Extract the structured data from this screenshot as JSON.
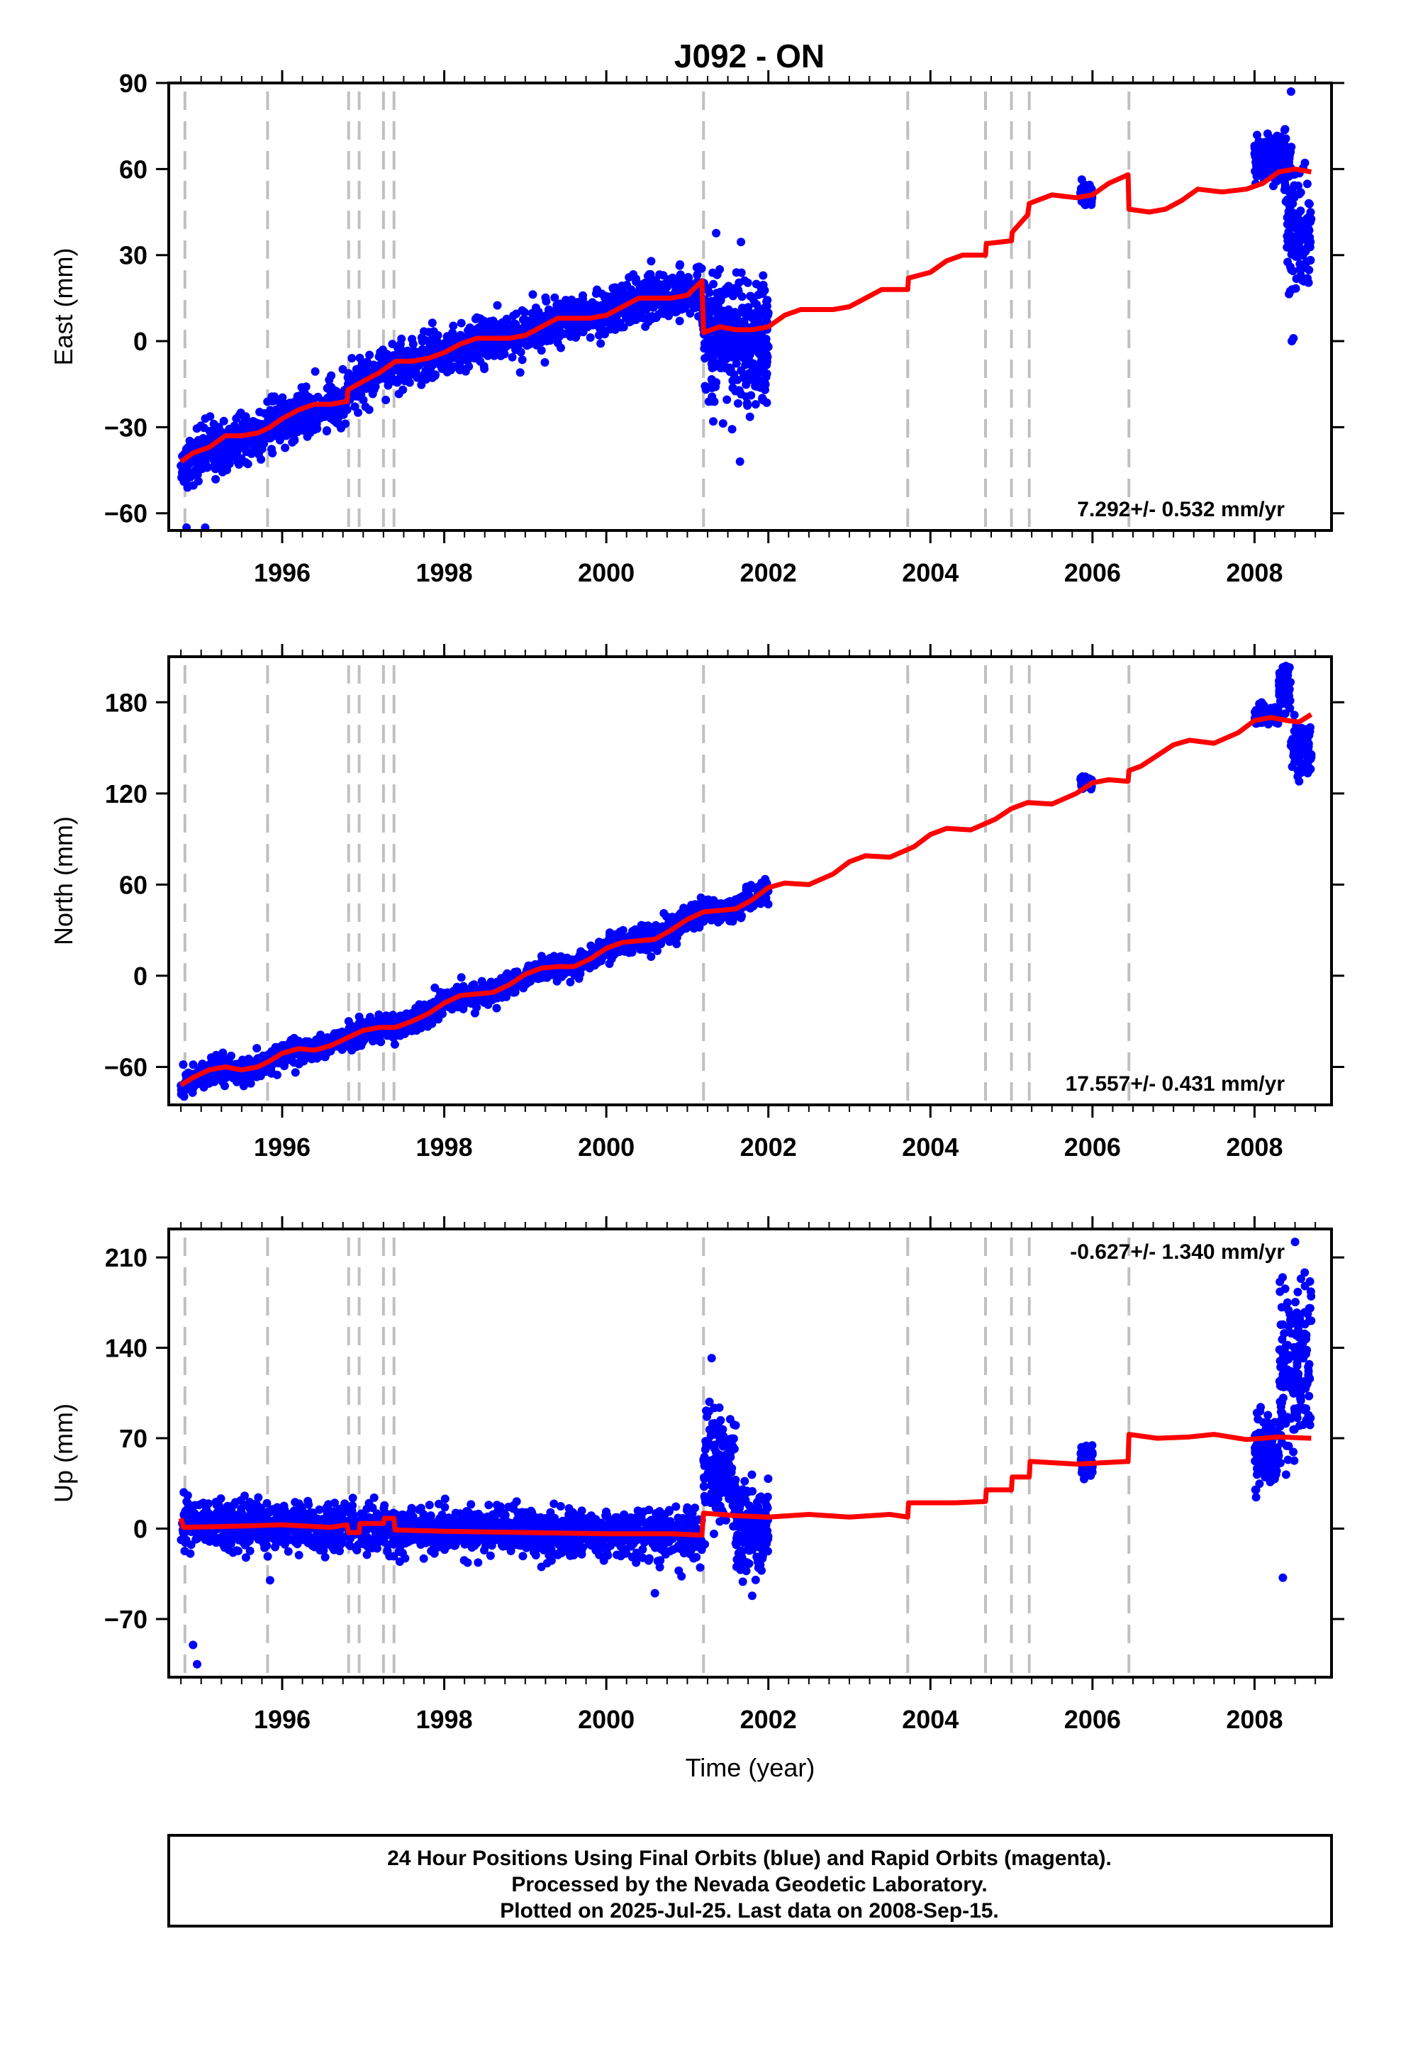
{
  "page": {
    "title": "J092 - ON",
    "caption_lines": [
      "24 Hour Positions Using Final Orbits (blue) and Rapid Orbits (magenta).",
      "Processed by the Nevada Geodetic Laboratory.",
      "Plotted on 2025-Jul-25. Last data on 2008-Sep-15."
    ]
  },
  "colors": {
    "data_points": "#0000ff",
    "model_line": "#ff0000",
    "event_lines": "#c0c0c0",
    "frame": "#000000"
  },
  "chart_data": [
    {
      "type": "scatter",
      "name": "east",
      "ylabel": "East (mm)",
      "xlabel": "",
      "rate_text": "7.292+/- 0.532 mm/yr",
      "rate_position": "bottom-right",
      "xlim": [
        1994.6,
        2008.95
      ],
      "ylim": [
        -66,
        90
      ],
      "xticks": [
        1996,
        1998,
        2000,
        2002,
        2004,
        2006,
        2008
      ],
      "xtick_labels": [
        "1996",
        "1998",
        "2000",
        "2002",
        "2004",
        "2006",
        "2008"
      ],
      "yticks": [
        -60,
        -30,
        0,
        30,
        60,
        90
      ],
      "ytick_labels": [
        "−60",
        "−30",
        "0",
        "30",
        "60",
        "90"
      ],
      "event_lines_x": [
        1994.8,
        1995.82,
        1996.82,
        1996.95,
        1997.25,
        1997.38,
        2001.2,
        2003.72,
        2004.68,
        2005.0,
        2005.22,
        2006.45
      ],
      "model_line": [
        [
          1994.75,
          -42
        ],
        [
          1994.9,
          -39
        ],
        [
          1995.1,
          -37
        ],
        [
          1995.3,
          -33
        ],
        [
          1995.5,
          -33
        ],
        [
          1995.7,
          -32
        ],
        [
          1995.85,
          -30
        ],
        [
          1996.0,
          -27
        ],
        [
          1996.2,
          -24
        ],
        [
          1996.4,
          -22
        ],
        [
          1996.6,
          -22
        ],
        [
          1996.8,
          -21
        ],
        [
          1996.81,
          -17
        ],
        [
          1997.0,
          -14
        ],
        [
          1997.2,
          -11
        ],
        [
          1997.4,
          -7
        ],
        [
          1997.6,
          -7
        ],
        [
          1997.8,
          -6
        ],
        [
          1998.0,
          -4
        ],
        [
          1998.2,
          -1
        ],
        [
          1998.4,
          1
        ],
        [
          1998.6,
          1
        ],
        [
          1998.8,
          1
        ],
        [
          1999.0,
          2
        ],
        [
          1999.2,
          5
        ],
        [
          1999.4,
          8
        ],
        [
          1999.6,
          8
        ],
        [
          1999.8,
          8
        ],
        [
          2000.0,
          9
        ],
        [
          2000.2,
          12
        ],
        [
          2000.4,
          15
        ],
        [
          2000.6,
          15
        ],
        [
          2000.8,
          15
        ],
        [
          2001.0,
          16
        ],
        [
          2001.18,
          21
        ],
        [
          2001.2,
          3
        ],
        [
          2001.4,
          5
        ],
        [
          2001.6,
          4
        ],
        [
          2001.8,
          4
        ],
        [
          2002.0,
          5
        ],
        [
          2002.2,
          9
        ],
        [
          2002.4,
          11
        ],
        [
          2002.6,
          11
        ],
        [
          2002.8,
          11
        ],
        [
          2003.0,
          12
        ],
        [
          2003.2,
          15
        ],
        [
          2003.4,
          18
        ],
        [
          2003.72,
          18
        ],
        [
          2003.73,
          22
        ],
        [
          2004.0,
          24
        ],
        [
          2004.2,
          28
        ],
        [
          2004.4,
          30
        ],
        [
          2004.68,
          30
        ],
        [
          2004.69,
          34
        ],
        [
          2005.0,
          35
        ],
        [
          2005.01,
          38
        ],
        [
          2005.2,
          44
        ],
        [
          2005.22,
          48
        ],
        [
          2005.5,
          51
        ],
        [
          2005.8,
          50
        ],
        [
          2006.0,
          51
        ],
        [
          2006.2,
          55
        ],
        [
          2006.44,
          58
        ],
        [
          2006.45,
          46
        ],
        [
          2006.7,
          45
        ],
        [
          2006.9,
          46
        ],
        [
          2007.1,
          49
        ],
        [
          2007.3,
          53
        ],
        [
          2007.6,
          52
        ],
        [
          2007.9,
          53
        ],
        [
          2008.1,
          55
        ],
        [
          2008.3,
          59
        ],
        [
          2008.5,
          60
        ],
        [
          2008.7,
          59
        ]
      ],
      "point_trend": [
        [
          1994.75,
          -44
        ],
        [
          1995.0,
          -40
        ],
        [
          1995.5,
          -34
        ],
        [
          1996.0,
          -28
        ],
        [
          1996.5,
          -23
        ],
        [
          1996.8,
          -21
        ],
        [
          1996.81,
          -16
        ],
        [
          1997.5,
          -8
        ],
        [
          1998.0,
          -4
        ],
        [
          1998.5,
          0
        ],
        [
          1999.0,
          3
        ],
        [
          1999.5,
          8
        ],
        [
          2000.0,
          10
        ],
        [
          2000.5,
          15
        ],
        [
          2001.18,
          17
        ],
        [
          2001.2,
          5
        ],
        [
          2001.6,
          2
        ],
        [
          2002.0,
          0
        ]
      ],
      "point_spread": 4,
      "point_clusters": [
        {
          "x": [
            2001.2,
            2002.0
          ],
          "y_center": 0,
          "spread": 12
        },
        {
          "x": [
            2005.85,
            2006.0
          ],
          "y_center": 51,
          "spread": 1.5
        },
        {
          "x": [
            2008.0,
            2008.35
          ],
          "y_center": 64,
          "spread": 4
        },
        {
          "x": [
            2008.35,
            2008.45
          ],
          "y_center": 62,
          "spread": 6
        },
        {
          "x": [
            2008.4,
            2008.7
          ],
          "y_center": 40,
          "spread": 10
        }
      ],
      "outliers": [
        [
          1994.82,
          -65
        ],
        [
          1995.05,
          -65
        ],
        [
          1995.55,
          -32
        ],
        [
          2001.65,
          -42
        ],
        [
          2001.4,
          25
        ],
        [
          2008.45,
          87
        ],
        [
          2008.48,
          1
        ],
        [
          2008.46,
          0
        ]
      ]
    },
    {
      "type": "scatter",
      "name": "north",
      "ylabel": "North (mm)",
      "xlabel": "",
      "rate_text": "17.557+/- 0.431 mm/yr",
      "rate_position": "bottom-right",
      "xlim": [
        1994.6,
        2008.95
      ],
      "ylim": [
        -85,
        210
      ],
      "xticks": [
        1996,
        1998,
        2000,
        2002,
        2004,
        2006,
        2008
      ],
      "xtick_labels": [
        "1996",
        "1998",
        "2000",
        "2002",
        "2004",
        "2006",
        "2008"
      ],
      "yticks": [
        -60,
        0,
        60,
        120,
        180
      ],
      "ytick_labels": [
        "−60",
        "0",
        "60",
        "120",
        "180"
      ],
      "event_lines_x": [
        1994.8,
        1995.82,
        1996.82,
        1996.95,
        1997.25,
        1997.38,
        2001.2,
        2003.72,
        2004.68,
        2005.0,
        2005.22,
        2006.45
      ],
      "model_line": [
        [
          1994.75,
          -72
        ],
        [
          1994.9,
          -67
        ],
        [
          1995.1,
          -62
        ],
        [
          1995.3,
          -60
        ],
        [
          1995.5,
          -62
        ],
        [
          1995.7,
          -60
        ],
        [
          1995.85,
          -56
        ],
        [
          1996.0,
          -51
        ],
        [
          1996.2,
          -48
        ],
        [
          1996.4,
          -49
        ],
        [
          1996.6,
          -46
        ],
        [
          1996.8,
          -41
        ],
        [
          1997.0,
          -36
        ],
        [
          1997.2,
          -34
        ],
        [
          1997.4,
          -34
        ],
        [
          1997.6,
          -30
        ],
        [
          1997.8,
          -25
        ],
        [
          1998.0,
          -18
        ],
        [
          1998.2,
          -13
        ],
        [
          1998.4,
          -12
        ],
        [
          1998.6,
          -11
        ],
        [
          1998.8,
          -6
        ],
        [
          1999.0,
          1
        ],
        [
          1999.2,
          5
        ],
        [
          1999.4,
          6
        ],
        [
          1999.6,
          6
        ],
        [
          1999.8,
          11
        ],
        [
          2000.0,
          18
        ],
        [
          2000.2,
          22
        ],
        [
          2000.4,
          23
        ],
        [
          2000.6,
          24
        ],
        [
          2000.8,
          30
        ],
        [
          2001.0,
          37
        ],
        [
          2001.2,
          42
        ],
        [
          2001.4,
          43
        ],
        [
          2001.6,
          44
        ],
        [
          2001.8,
          50
        ],
        [
          2002.0,
          58
        ],
        [
          2002.2,
          61
        ],
        [
          2002.5,
          60
        ],
        [
          2002.8,
          67
        ],
        [
          2003.0,
          75
        ],
        [
          2003.2,
          79
        ],
        [
          2003.5,
          78
        ],
        [
          2003.8,
          85
        ],
        [
          2004.0,
          93
        ],
        [
          2004.2,
          97
        ],
        [
          2004.5,
          96
        ],
        [
          2004.8,
          103
        ],
        [
          2005.0,
          110
        ],
        [
          2005.2,
          114
        ],
        [
          2005.5,
          113
        ],
        [
          2005.8,
          120
        ],
        [
          2006.0,
          127
        ],
        [
          2006.2,
          129
        ],
        [
          2006.44,
          128
        ],
        [
          2006.45,
          135
        ],
        [
          2006.6,
          138
        ],
        [
          2006.8,
          145
        ],
        [
          2007.0,
          152
        ],
        [
          2007.2,
          155
        ],
        [
          2007.5,
          153
        ],
        [
          2007.8,
          160
        ],
        [
          2008.0,
          168
        ],
        [
          2008.2,
          170
        ],
        [
          2008.4,
          168
        ],
        [
          2008.55,
          167
        ],
        [
          2008.7,
          172
        ]
      ],
      "point_trend": [
        [
          1994.75,
          -74
        ],
        [
          1994.9,
          -69
        ],
        [
          1995.1,
          -63
        ],
        [
          1995.3,
          -61
        ],
        [
          1995.5,
          -63
        ],
        [
          1995.7,
          -61
        ],
        [
          1995.85,
          -56
        ],
        [
          1996.0,
          -51
        ],
        [
          1996.2,
          -48
        ],
        [
          1996.4,
          -49
        ],
        [
          1996.6,
          -46
        ],
        [
          1996.8,
          -41
        ],
        [
          1997.0,
          -36
        ],
        [
          1997.2,
          -34
        ],
        [
          1997.4,
          -34
        ],
        [
          1997.6,
          -30
        ],
        [
          1997.8,
          -25
        ],
        [
          1998.0,
          -18
        ],
        [
          1998.2,
          -13
        ],
        [
          1998.4,
          -12
        ],
        [
          1998.6,
          -11
        ],
        [
          1998.8,
          -6
        ],
        [
          1999.0,
          1
        ],
        [
          1999.2,
          5
        ],
        [
          1999.4,
          6
        ],
        [
          1999.6,
          6
        ],
        [
          1999.8,
          11
        ],
        [
          2000.0,
          18
        ],
        [
          2000.2,
          22
        ],
        [
          2000.4,
          23
        ],
        [
          2000.6,
          24
        ],
        [
          2000.8,
          30
        ],
        [
          2001.0,
          37
        ],
        [
          2001.2,
          42
        ],
        [
          2001.4,
          43
        ],
        [
          2001.6,
          44
        ],
        [
          2001.8,
          50
        ],
        [
          2002.0,
          58
        ]
      ],
      "point_spread": 4,
      "point_clusters": [
        {
          "x": [
            2005.85,
            2006.0
          ],
          "y_center": 128,
          "spread": 2
        },
        {
          "x": [
            2008.0,
            2008.3
          ],
          "y_center": 172,
          "spread": 3
        },
        {
          "x": [
            2008.3,
            2008.45
          ],
          "y_center": 190,
          "spread": 7
        },
        {
          "x": [
            2008.45,
            2008.7
          ],
          "y_center": 150,
          "spread": 8
        }
      ],
      "outliers": [
        [
          2008.35,
          203
        ],
        [
          2008.55,
          128
        ]
      ]
    },
    {
      "type": "scatter",
      "name": "up",
      "ylabel": "Up (mm)",
      "xlabel": "Time (year)",
      "rate_text": "-0.627+/- 1.340 mm/yr",
      "rate_position": "top-right",
      "xlim": [
        1994.6,
        2008.95
      ],
      "ylim": [
        -115,
        232
      ],
      "xticks": [
        1996,
        1998,
        2000,
        2002,
        2004,
        2006,
        2008
      ],
      "xtick_labels": [
        "1996",
        "1998",
        "2000",
        "2002",
        "2004",
        "2006",
        "2008"
      ],
      "yticks": [
        -70,
        0,
        70,
        140,
        210
      ],
      "ytick_labels": [
        "−70",
        "0",
        "70",
        "140",
        "210"
      ],
      "event_lines_x": [
        1994.8,
        1995.82,
        1996.82,
        1996.95,
        1997.25,
        1997.38,
        2001.2,
        2003.72,
        2004.68,
        2005.0,
        2005.22,
        2006.45
      ],
      "model_line": [
        [
          1994.75,
          8
        ],
        [
          1994.78,
          1
        ],
        [
          1995.5,
          2
        ],
        [
          1996.0,
          3
        ],
        [
          1996.6,
          1
        ],
        [
          1996.8,
          3
        ],
        [
          1996.82,
          -3
        ],
        [
          1996.95,
          -3
        ],
        [
          1996.96,
          4
        ],
        [
          1997.25,
          4
        ],
        [
          1997.26,
          8
        ],
        [
          1997.38,
          8
        ],
        [
          1997.39,
          -1
        ],
        [
          1998.0,
          -2
        ],
        [
          1999.0,
          -3
        ],
        [
          2000.0,
          -4
        ],
        [
          2000.8,
          -4
        ],
        [
          2001.18,
          -5
        ],
        [
          2001.2,
          12
        ],
        [
          2001.6,
          10
        ],
        [
          2002.0,
          9
        ],
        [
          2002.5,
          11
        ],
        [
          2003.0,
          9
        ],
        [
          2003.5,
          11
        ],
        [
          2003.72,
          9
        ],
        [
          2003.73,
          20
        ],
        [
          2004.3,
          20
        ],
        [
          2004.68,
          21
        ],
        [
          2004.69,
          30
        ],
        [
          2005.0,
          30
        ],
        [
          2005.01,
          40
        ],
        [
          2005.22,
          40
        ],
        [
          2005.23,
          52
        ],
        [
          2005.8,
          50
        ],
        [
          2006.44,
          52
        ],
        [
          2006.45,
          73
        ],
        [
          2006.8,
          70
        ],
        [
          2007.2,
          71
        ],
        [
          2007.5,
          73
        ],
        [
          2007.9,
          69
        ],
        [
          2008.3,
          71
        ],
        [
          2008.7,
          70
        ]
      ],
      "point_trend": [
        [
          1994.75,
          3
        ],
        [
          1996.0,
          2
        ],
        [
          1997.0,
          0
        ],
        [
          1998.0,
          -2
        ],
        [
          1999.0,
          -3
        ],
        [
          2000.0,
          -4
        ],
        [
          2001.18,
          -4
        ]
      ],
      "point_spread": 9,
      "point_clusters": [
        {
          "x": [
            2001.2,
            2001.6
          ],
          "y_center": 45,
          "spread": 22
        },
        {
          "x": [
            2001.6,
            2002.0
          ],
          "y_center": 0,
          "spread": 18
        },
        {
          "x": [
            2005.85,
            2006.0
          ],
          "y_center": 52,
          "spread": 6
        },
        {
          "x": [
            2008.0,
            2008.3
          ],
          "y_center": 60,
          "spread": 14
        },
        {
          "x": [
            2008.3,
            2008.7
          ],
          "y_center": 120,
          "spread": 35
        }
      ],
      "outliers": [
        [
          1994.9,
          -90
        ],
        [
          1994.95,
          -105
        ],
        [
          1995.85,
          -40
        ],
        [
          2000.6,
          -50
        ],
        [
          2001.3,
          132
        ],
        [
          2001.8,
          -52
        ],
        [
          2008.5,
          222
        ],
        [
          2008.35,
          -38
        ]
      ]
    }
  ]
}
